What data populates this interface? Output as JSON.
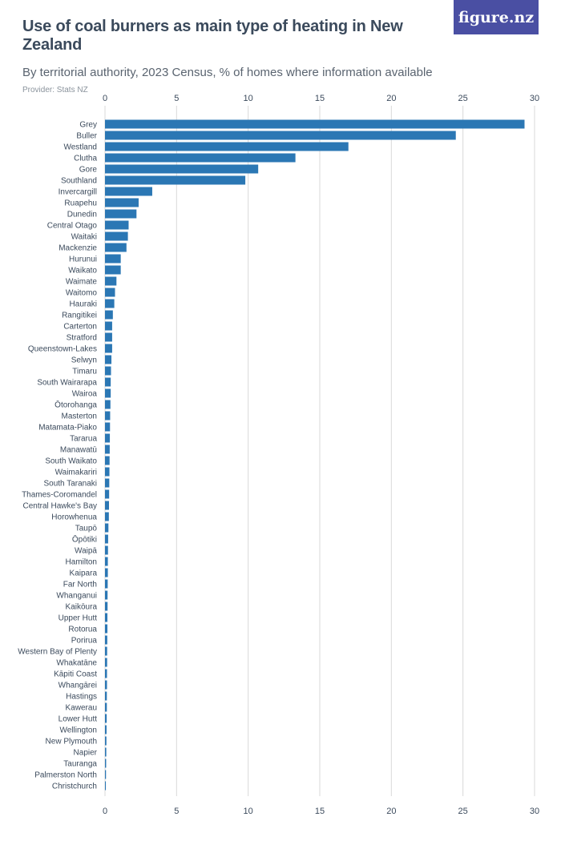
{
  "header": {
    "title": "Use of coal burners as main type of heating in New Zealand",
    "subtitle": "By territorial authority, 2023 Census, % of homes where information available",
    "provider": "Provider: Stats NZ",
    "logo": "figure.nz"
  },
  "colors": {
    "bar": "#2b77b4",
    "grid": "#d9d9d9",
    "text": "#3b4a5c"
  },
  "chart_data": {
    "type": "bar",
    "orientation": "horizontal",
    "title": "Use of coal burners as main type of heating in New Zealand",
    "xlim": [
      0,
      30
    ],
    "ticks": [
      0,
      5,
      10,
      15,
      20,
      25,
      30
    ],
    "categories": [
      "Grey",
      "Buller",
      "Westland",
      "Clutha",
      "Gore",
      "Southland",
      "Invercargill",
      "Ruapehu",
      "Dunedin",
      "Central Otago",
      "Waitaki",
      "Mackenzie",
      "Hurunui",
      "Waikato",
      "Waimate",
      "Waitomo",
      "Hauraki",
      "Rangitikei",
      "Carterton",
      "Stratford",
      "Queenstown-Lakes",
      "Selwyn",
      "Timaru",
      "South Wairarapa",
      "Wairoa",
      "Ōtorohanga",
      "Masterton",
      "Matamata-Piako",
      "Tararua",
      "Manawatū",
      "South Waikato",
      "Waimakariri",
      "South Taranaki",
      "Thames-Coromandel",
      "Central Hawke's Bay",
      "Horowhenua",
      "Taupō",
      "Ōpōtiki",
      "Waipā",
      "Hamilton",
      "Kaipara",
      "Far North",
      "Whanganui",
      "Kaikōura",
      "Upper Hutt",
      "Rotorua",
      "Porirua",
      "Western Bay of Plenty",
      "Whakatāne",
      "Kāpiti Coast",
      "Whangārei",
      "Hastings",
      "Kawerau",
      "Lower Hutt",
      "Wellington",
      "New Plymouth",
      "Napier",
      "Tauranga",
      "Palmerston North",
      "Christchurch"
    ],
    "values": [
      29.3,
      24.5,
      17.0,
      13.3,
      10.7,
      9.8,
      3.3,
      2.35,
      2.2,
      1.65,
      1.6,
      1.5,
      1.1,
      1.1,
      0.8,
      0.7,
      0.65,
      0.55,
      0.5,
      0.5,
      0.5,
      0.45,
      0.42,
      0.4,
      0.4,
      0.38,
      0.36,
      0.35,
      0.34,
      0.33,
      0.32,
      0.31,
      0.3,
      0.29,
      0.28,
      0.27,
      0.24,
      0.22,
      0.21,
      0.2,
      0.2,
      0.19,
      0.18,
      0.18,
      0.17,
      0.17,
      0.16,
      0.15,
      0.15,
      0.14,
      0.14,
      0.13,
      0.13,
      0.12,
      0.11,
      0.1,
      0.09,
      0.08,
      0.07,
      0.06
    ]
  }
}
